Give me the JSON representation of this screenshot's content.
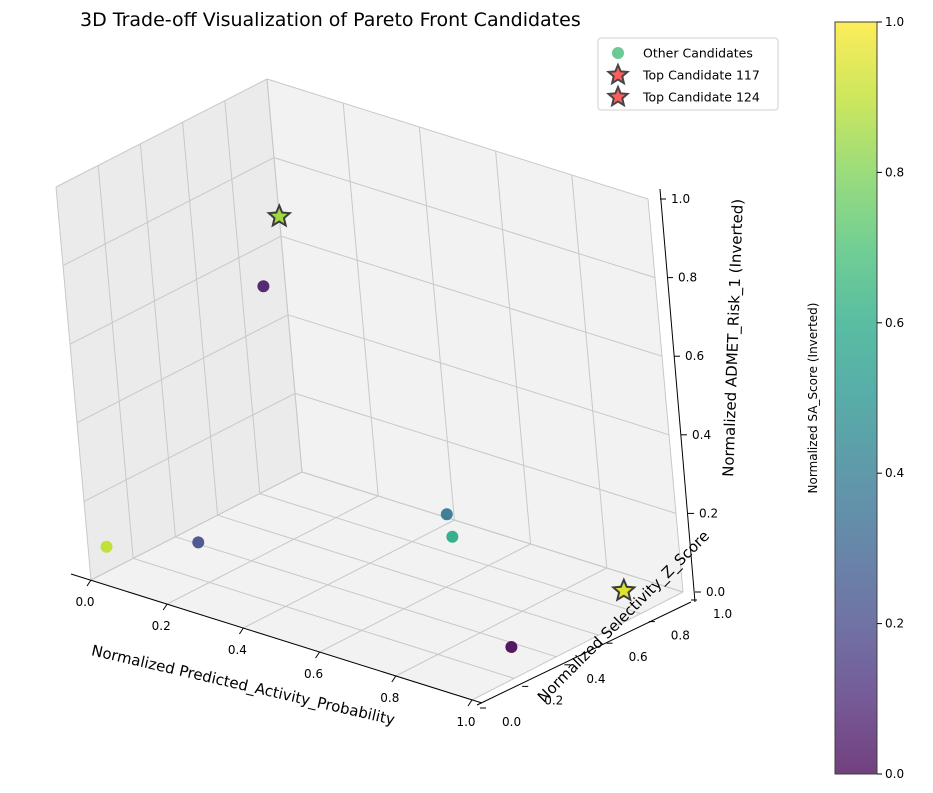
{
  "chart_data": {
    "type": "scatter",
    "title": "3D Trade-off Visualization of Pareto Front Candidates",
    "xlabel": "Normalized Predicted_Activity_Probability",
    "ylabel": "Normalized Selectivity_Z_Score",
    "zlabel": "Normalized ADMET_Risk_1 (Inverted)",
    "xlim": [
      0,
      1
    ],
    "ylim": [
      0,
      1
    ],
    "zlim": [
      0,
      1
    ],
    "x_ticks": [
      "0.0",
      "0.2",
      "0.4",
      "0.6",
      "0.8",
      "1.0"
    ],
    "y_ticks": [
      "0.0",
      "0.2",
      "0.4",
      "0.6",
      "0.8",
      "1.0"
    ],
    "z_ticks": [
      "0.0",
      "0.2",
      "0.4",
      "0.6",
      "0.8",
      "1.0"
    ],
    "grid": true,
    "legend_position": "top-right",
    "colorbar": {
      "label": "Normalized SA_Score (Inverted)",
      "range": [
        0,
        1
      ],
      "ticks": [
        "0.0",
        "0.2",
        "0.4",
        "0.6",
        "0.8",
        "1.0"
      ],
      "colormap": "viridis"
    },
    "series": [
      {
        "name": "Other Candidates",
        "marker": "circle",
        "points": [
          {
            "x": 0.05,
            "y": 0.0,
            "z": 0.1,
            "c": 0.9
          },
          {
            "x": 0.12,
            "y": 0.3,
            "z": 0.05,
            "c": 0.22
          },
          {
            "x": 0.0,
            "y": 0.9,
            "z": 0.5,
            "c": 0.06
          },
          {
            "x": 0.45,
            "y": 0.9,
            "z": 0.0,
            "c": 0.6
          },
          {
            "x": 0.5,
            "y": 0.8,
            "z": 0.1,
            "c": 0.38
          },
          {
            "x": 1.0,
            "y": 0.2,
            "z": 0.08,
            "c": 0.0
          }
        ]
      },
      {
        "name": "Top Candidate 117",
        "marker": "star",
        "points": [
          {
            "x": 0.0,
            "y": 1.0,
            "z": 0.65,
            "c": 0.85
          }
        ]
      },
      {
        "name": "Top Candidate 124",
        "marker": "star",
        "points": [
          {
            "x": 0.9,
            "y": 0.9,
            "z": 0.0,
            "c": 0.95
          }
        ]
      }
    ],
    "legend": [
      {
        "label": "Other Candidates",
        "color": "#5cc28a",
        "marker": "circle"
      },
      {
        "label": "Top Candidate 117",
        "color": "#f05050",
        "marker": "star"
      },
      {
        "label": "Top Candidate 124",
        "color": "#f05050",
        "marker": "star"
      }
    ],
    "colors": {
      "pane": "#f2f2f2",
      "pane_side": "#ebebeb",
      "grid": "#c8c8c8",
      "star_edge": "#333333",
      "star_fill": "#ff4d4d"
    }
  }
}
